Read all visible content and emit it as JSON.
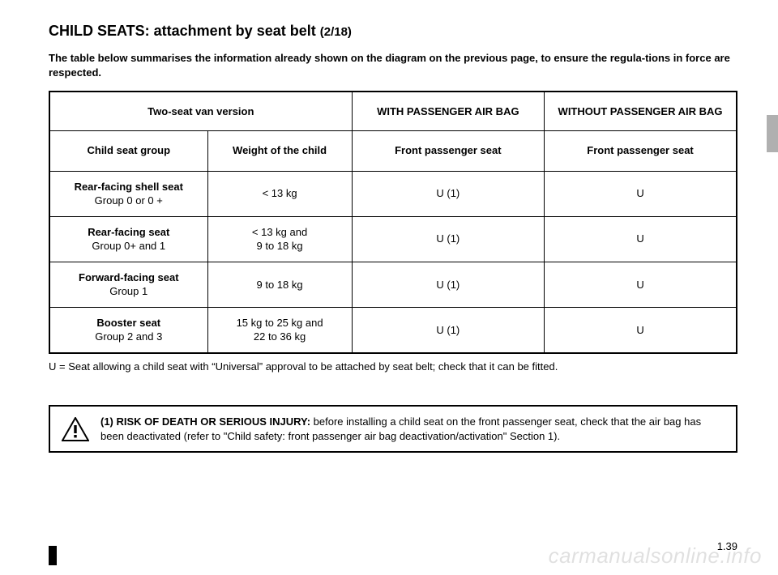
{
  "title_main": "CHILD SEATS: attachment by seat belt ",
  "title_sub": "(2/18)",
  "intro": "The table below summarises the information already shown on the diagram on the previous page, to ensure the regula-tions in force are respected.",
  "table": {
    "header": {
      "span2": "Two-seat van version",
      "col3": "WITH PASSENGER AIR BAG",
      "col4": "WITHOUT PASSENGER AIR BAG"
    },
    "subheader": {
      "col1": "Child seat group",
      "col2": "Weight of the child",
      "col3": "Front passenger seat",
      "col4": "Front passenger seat"
    },
    "rows": [
      {
        "name": "Rear-facing shell seat",
        "group": "Group 0 or 0 +",
        "weight": "< 13 kg",
        "c3": "U (1)",
        "c4": "U"
      },
      {
        "name": "Rear-facing seat",
        "group": "Group 0+ and 1",
        "weight": "< 13 kg and\n9 to 18 kg",
        "c3": "U (1)",
        "c4": "U"
      },
      {
        "name": "Forward-facing seat",
        "group": "Group 1",
        "weight": "9 to 18 kg",
        "c3": "U (1)",
        "c4": "U"
      },
      {
        "name": "Booster seat",
        "group": "Group 2 and 3",
        "weight": "15 kg to 25 kg and\n22 to 36 kg",
        "c3": "U (1)",
        "c4": "U"
      }
    ]
  },
  "footnote": "U = Seat allowing a child seat with “Universal” approval to be attached by seat belt; check that it can be fitted.",
  "warning_lead": "(1) RISK OF DEATH OR SERIOUS INJURY:",
  "warning_text": " before installing a child seat on the front passenger seat, check that the air bag has been deactivated (refer to \"Child safety: front passenger air bag deactivation/activation\" Section 1).",
  "pagenum": "1.39",
  "watermark": "carmanualsonline.info"
}
